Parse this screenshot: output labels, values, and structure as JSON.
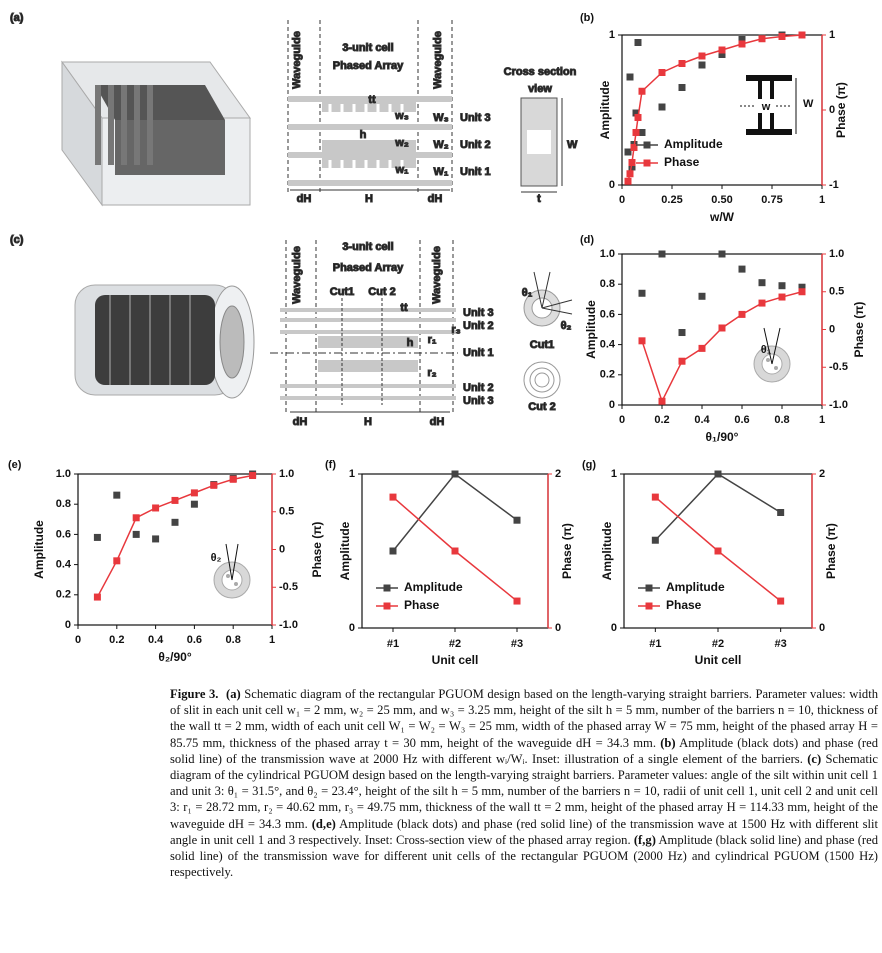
{
  "schematic_a": {
    "labels": [
      "(a)",
      "Waveguide",
      "3-unit cell",
      "Phased Array",
      "Waveguide",
      "tt",
      "w₃",
      "W₃",
      "Unit 3",
      "h",
      "w₂",
      "W₂",
      "Unit 2",
      "w₁",
      "W₁",
      "Unit 1",
      "dH",
      "H",
      "dH",
      "Cross section",
      "view",
      "W",
      "t"
    ]
  },
  "schematic_c": {
    "labels": [
      "(c)",
      "Waveguide",
      "3-unit cell",
      "Phased Array",
      "Waveguide",
      "Cut1",
      "Cut 2",
      "tt",
      "Unit 3",
      "Unit 2",
      "h",
      "r₁",
      "r₃",
      "Unit 1",
      "r₂",
      "Unit 2",
      "Unit 3",
      "dH",
      "H",
      "dH",
      "θ₁",
      "θ₂",
      "Cut1",
      "Cut 2"
    ]
  },
  "chart_data": [
    {
      "type": "combo",
      "panel_label": "(b)",
      "xlabel": "w/W",
      "ylabel": "Amplitude",
      "y2label": "Phase (π)",
      "x": [
        0.03,
        0.04,
        0.05,
        0.06,
        0.07,
        0.08,
        0.1,
        0.2,
        0.3,
        0.4,
        0.5,
        0.6,
        0.7,
        0.8,
        0.9
      ],
      "xlim": [
        0,
        1
      ],
      "xticks": [
        0,
        0.25,
        {
          "value": 0.5,
          "label": "0.50"
        },
        0.75,
        1
      ],
      "ylim": [
        0,
        1
      ],
      "yticks": [
        0,
        1
      ],
      "y2lim": [
        -1,
        1
      ],
      "y2ticks": [
        -1,
        0,
        1
      ],
      "legend": "lower-left",
      "inset_labels": [
        "w",
        "W"
      ],
      "series": [
        {
          "name": "Amplitude",
          "color": "#444444",
          "line": false,
          "values": [
            0.22,
            0.72,
            0.12,
            0.27,
            0.48,
            0.95,
            0.35,
            0.52,
            0.65,
            0.8,
            0.87,
            0.97,
            0.98,
            1.0,
            1.0
          ]
        },
        {
          "name": "Phase",
          "color": "#e8383d",
          "axis": "y2",
          "line": true,
          "values": [
            -0.95,
            -0.85,
            -0.7,
            -0.5,
            -0.3,
            -0.1,
            0.25,
            0.5,
            0.62,
            0.72,
            0.8,
            0.88,
            0.95,
            0.98,
            1.0
          ]
        }
      ]
    },
    {
      "type": "combo",
      "panel_label": "(d)",
      "xlabel": "θ₁/90°",
      "ylabel": "Amplitude",
      "y2label": "Phase (π)",
      "x": [
        0.1,
        0.2,
        0.3,
        0.4,
        0.5,
        0.6,
        0.7,
        0.8,
        0.9
      ],
      "xlim": [
        0,
        1
      ],
      "xticks": [
        0,
        0.2,
        0.4,
        0.6,
        0.8,
        1
      ],
      "ylim": [
        0,
        1
      ],
      "yticks": [
        0,
        0.2,
        0.4,
        0.6,
        0.8,
        {
          "value": 1,
          "label": "1.0"
        }
      ],
      "y2lim": [
        -1,
        1
      ],
      "y2ticks": [
        {
          "value": -1,
          "label": "-1.0"
        },
        -0.5,
        0,
        0.5,
        {
          "value": 1,
          "label": "1.0"
        }
      ],
      "inset_labels": [
        "θ₁"
      ],
      "series": [
        {
          "color": "#444444",
          "line": false,
          "values": [
            0.74,
            1.0,
            0.48,
            0.72,
            1.0,
            0.9,
            0.81,
            0.79,
            0.78
          ]
        },
        {
          "color": "#e8383d",
          "axis": "y2",
          "line": true,
          "values": [
            -0.15,
            -0.95,
            -0.42,
            -0.25,
            0.02,
            0.2,
            0.35,
            0.43,
            0.5
          ]
        }
      ]
    },
    {
      "type": "combo",
      "panel_label": "(e)",
      "xlabel": "θ₂/90°",
      "ylabel": "Amplitude",
      "y2label": "Phase (π)",
      "x": [
        0.1,
        0.2,
        0.3,
        0.4,
        0.5,
        0.6,
        0.7,
        0.8,
        0.9
      ],
      "xlim": [
        0,
        1
      ],
      "xticks": [
        0,
        0.2,
        0.4,
        0.6,
        0.8,
        1
      ],
      "ylim": [
        0,
        1
      ],
      "yticks": [
        0,
        0.2,
        0.4,
        0.6,
        0.8,
        {
          "value": 1,
          "label": "1.0"
        }
      ],
      "y2lim": [
        -1,
        1
      ],
      "y2ticks": [
        {
          "value": -1,
          "label": "-1.0"
        },
        -0.5,
        0,
        0.5,
        {
          "value": 1,
          "label": "1.0"
        }
      ],
      "inset_labels": [
        "θ₂"
      ],
      "series": [
        {
          "color": "#444444",
          "line": false,
          "values": [
            0.58,
            0.86,
            0.6,
            0.57,
            0.68,
            0.8,
            0.93,
            0.97,
            1.0
          ]
        },
        {
          "color": "#e8383d",
          "axis": "y2",
          "line": true,
          "values": [
            -0.63,
            -0.15,
            0.42,
            0.55,
            0.65,
            0.75,
            0.85,
            0.93,
            0.98
          ]
        }
      ]
    },
    {
      "type": "combo",
      "panel_label": "(f)",
      "xlabel": "Unit cell",
      "ylabel": "Amplitude",
      "y2label": "Phase (π)",
      "categories": [
        "#1",
        "#2",
        "#3"
      ],
      "ylim": [
        0,
        1
      ],
      "yticks": [
        0,
        1
      ],
      "y2lim": [
        0,
        2
      ],
      "y2ticks": [
        0,
        2
      ],
      "legend": "lower-left",
      "series": [
        {
          "name": "Amplitude",
          "color": "#444444",
          "line": true,
          "values": [
            0.5,
            1.0,
            0.7
          ]
        },
        {
          "name": "Phase",
          "color": "#e8383d",
          "axis": "y2",
          "line": true,
          "values": [
            1.7,
            1.0,
            0.35
          ]
        }
      ]
    },
    {
      "type": "combo",
      "panel_label": "(g)",
      "xlabel": "Unit cell",
      "ylabel": "Amplitude",
      "y2label": "Phase (π)",
      "categories": [
        "#1",
        "#2",
        "#3"
      ],
      "ylim": [
        0,
        1
      ],
      "yticks": [
        0,
        1
      ],
      "y2lim": [
        0,
        2
      ],
      "y2ticks": [
        0,
        2
      ],
      "legend": "lower-left",
      "series": [
        {
          "name": "Amplitude",
          "color": "#444444",
          "line": true,
          "values": [
            0.57,
            1.0,
            0.75
          ]
        },
        {
          "name": "Phase",
          "color": "#e8383d",
          "axis": "y2",
          "line": true,
          "values": [
            1.7,
            1.0,
            0.35
          ]
        }
      ]
    }
  ],
  "caption": {
    "runs": [
      {
        "text": "Figure 3.",
        "bold": true
      },
      {
        "text": "(a)",
        "bold": true
      },
      {
        "text": " Schematic diagram of the rectangular PGUOM design based on the length-varying straight barriers. Parameter values: width of slit in each unit cell w₁ = 2 mm, w₂ = 25 mm, and w₃ = 3.25 mm, height of the silt h = 5 mm, number of the barriers n = 10, thickness of the wall tt = 2 mm, width of each unit cell W₁ = W₂ = W₃ = 25 mm, width of the phased array W = 75 mm, height of the phased array H = 85.75 mm, thickness of the phased array t = 30 mm, height of the waveguide dH = 34.3 mm. "
      },
      {
        "text": "(b)",
        "bold": true
      },
      {
        "text": " Amplitude (black dots) and phase (red solid line) of the transmission wave at 2000 Hz with different wᵢ/Wᵢ. Inset: illustration of a single element of the barriers. "
      },
      {
        "text": "(c)",
        "bold": true
      },
      {
        "text": " Schematic diagram of the cylindrical PGUOM design based on the length-varying straight barriers. Parameter values: angle of the silt within unit cell 1 and unit 3: θ₁ = 31.5°, and θ₂ = 23.4°, height of the silt h = 5 mm, number of the barriers n = 10, radii of unit cell 1, unit cell 2 and unit cell 3: r₁ = 28.72 mm, r₂ = 40.62 mm, r₃ = 49.75 mm, thickness of the wall tt = 2 mm, height of the phased array H = 114.33 mm, height of the waveguide dH = 34.3 mm. "
      },
      {
        "text": "(d,e)",
        "bold": true
      },
      {
        "text": " Amplitude (black dots) and phase (red solid line) of the transmission wave at 1500 Hz with different slit angle in unit cell 1 and 3 respectively. Inset: Cross-section view of the phased array region. "
      },
      {
        "text": "(f,g)",
        "bold": true
      },
      {
        "text": " Amplitude (black solid line) and phase (red solid line) of the transmission wave for different unit cells of the rectangular PGUOM (2000 Hz) and cylindrical PGUOM (1500 Hz) respectively."
      }
    ]
  }
}
